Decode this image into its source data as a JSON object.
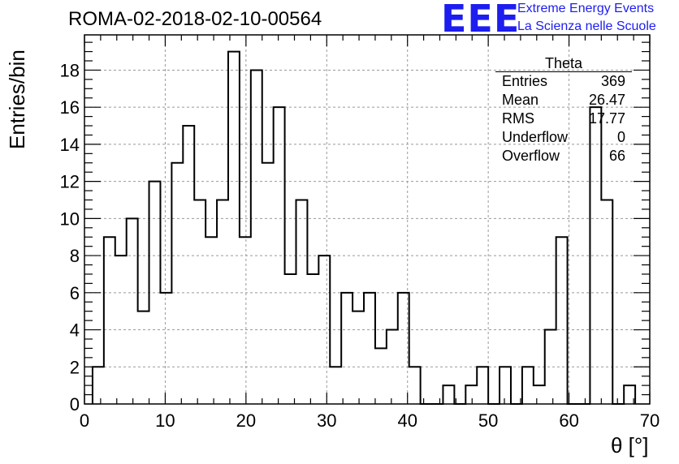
{
  "header": {
    "run_title": "ROMA-02-2018-02-10-00564",
    "logo_text": "EEE",
    "logo_line1": "Extreme Energy Events",
    "logo_line2": "La Scienza nelle Scuole",
    "logo_color": "#1d1df0"
  },
  "stats_box": {
    "title": "Theta",
    "rows": [
      {
        "label": "Entries",
        "value": "369"
      },
      {
        "label": "Mean",
        "value": "26.47"
      },
      {
        "label": "RMS",
        "value": "17.77"
      },
      {
        "label": "Underflow",
        "value": "0"
      },
      {
        "label": "Overflow",
        "value": "66"
      }
    ]
  },
  "chart_data": {
    "type": "bar",
    "histogram": true,
    "title": "ROMA-02-2018-02-10-00564",
    "xlabel": "θ [°]",
    "ylabel": "Entries/bin",
    "xlim": [
      0,
      70
    ],
    "ylim": [
      0,
      19.9
    ],
    "grid": true,
    "bin_width": 1.4,
    "x_start": 1.0,
    "values": [
      2,
      9,
      8,
      10,
      5,
      12,
      6,
      13,
      15,
      11,
      9,
      11,
      19,
      9,
      18,
      13,
      16,
      7,
      11,
      7,
      8,
      2,
      6,
      5,
      6,
      3,
      4,
      6,
      2,
      0,
      0,
      1,
      0,
      1,
      2,
      0,
      2,
      0,
      2,
      1,
      4,
      9,
      0,
      0,
      16,
      11,
      0,
      1
    ],
    "x_ticks": [
      0,
      10,
      20,
      30,
      40,
      50,
      60,
      70
    ],
    "y_ticks": [
      0,
      2,
      4,
      6,
      8,
      10,
      12,
      14,
      16,
      18
    ]
  }
}
